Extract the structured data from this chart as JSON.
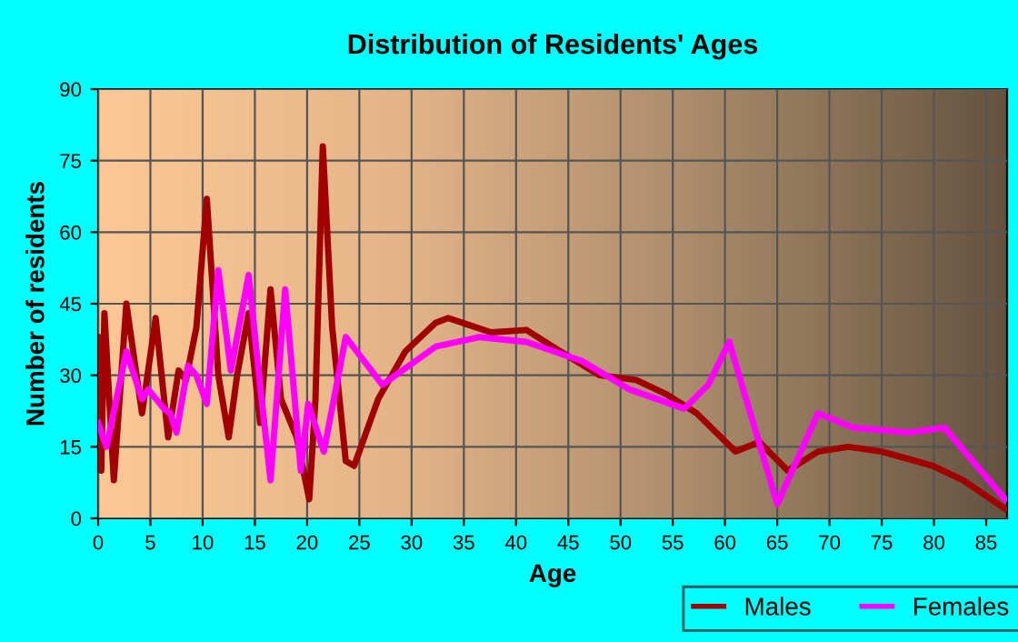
{
  "chart_data": {
    "type": "line",
    "title": "Distribution of Residents' Ages",
    "xlabel": "Age",
    "ylabel": "Number of residents",
    "xlim": [
      0,
      87
    ],
    "xticks": [
      0,
      5,
      10,
      15,
      20,
      25,
      30,
      35,
      40,
      45,
      50,
      55,
      60,
      65,
      70,
      75,
      80,
      85
    ],
    "ylim": [
      0,
      90
    ],
    "yticks": [
      0,
      15,
      30,
      45,
      60,
      75,
      90
    ],
    "grid": true,
    "legend": "bottom right",
    "series": [
      {
        "name": "Males",
        "color": "#a00000",
        "x": [
          0,
          0.3,
          0.6,
          1.5,
          2.7,
          4.2,
          5.5,
          6.7,
          7.7,
          8.4,
          9.4,
          10.4,
          11.5,
          12.5,
          13.3,
          14.4,
          15.5,
          16.5,
          17.5,
          19,
          20.2,
          20.8,
          21.5,
          22.4,
          23.7,
          24.5,
          26.8,
          29.4,
          32.3,
          33.5,
          37.6,
          41,
          43.5,
          48,
          51.5,
          54.4,
          57.3,
          61,
          63.3,
          66,
          68.9,
          71.8,
          75,
          79.9,
          82.8,
          86.8
        ],
        "values": [
          38,
          10,
          43,
          8,
          45,
          22,
          42,
          17,
          31,
          29,
          40,
          67,
          30,
          17,
          30,
          43,
          20,
          48,
          25,
          17,
          4,
          25,
          78,
          40,
          12,
          11,
          25,
          35,
          41,
          42,
          39,
          39.5,
          36,
          30,
          29,
          26,
          22,
          14,
          16,
          10,
          14,
          15,
          14,
          11,
          8,
          2
        ]
      },
      {
        "name": "Females",
        "color": "#ff00ff",
        "x": [
          0,
          0.8,
          2.7,
          4.2,
          4.8,
          6.3,
          6.9,
          7.5,
          8.6,
          9.4,
          10.4,
          11.5,
          12.7,
          14.4,
          15.5,
          16.5,
          17.9,
          19.4,
          20.1,
          21.6,
          23.7,
          27.2,
          32.3,
          36.5,
          41,
          46.3,
          50.9,
          56.1,
          58.4,
          60.4,
          65,
          68.9,
          72.3,
          77.6,
          81,
          86.8
        ],
        "values": [
          20,
          15,
          35,
          25,
          27,
          23,
          22,
          18,
          32,
          30,
          24,
          52,
          31,
          51,
          28,
          8,
          48,
          10,
          24,
          14,
          38,
          28,
          36,
          38,
          37,
          33,
          27,
          23,
          28,
          37,
          3,
          22,
          19,
          18,
          19,
          4
        ]
      }
    ]
  }
}
